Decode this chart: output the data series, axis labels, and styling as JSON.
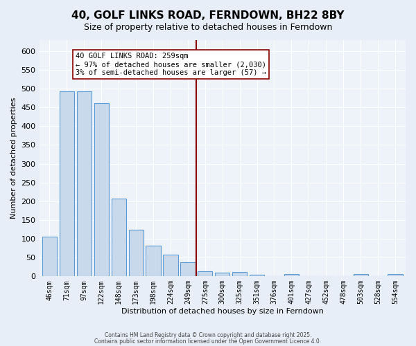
{
  "title": "40, GOLF LINKS ROAD, FERNDOWN, BH22 8BY",
  "subtitle": "Size of property relative to detached houses in Ferndown",
  "xlabel": "Distribution of detached houses by size in Ferndown",
  "ylabel": "Number of detached properties",
  "bins": [
    "46sqm",
    "71sqm",
    "97sqm",
    "122sqm",
    "148sqm",
    "173sqm",
    "198sqm",
    "224sqm",
    "249sqm",
    "275sqm",
    "300sqm",
    "325sqm",
    "351sqm",
    "376sqm",
    "401sqm",
    "427sqm",
    "452sqm",
    "478sqm",
    "503sqm",
    "528sqm",
    "554sqm"
  ],
  "values": [
    106,
    492,
    492,
    462,
    207,
    124,
    81,
    58,
    38,
    14,
    10,
    12,
    4,
    0,
    7,
    0,
    0,
    0,
    7,
    0,
    7
  ],
  "bar_color": "#c9d9ec",
  "bar_edge_color": "#5b9bd5",
  "vline_x": 8.5,
  "vline_color": "#8b0000",
  "annotation_text": "40 GOLF LINKS ROAD: 259sqm\n← 97% of detached houses are smaller (2,030)\n3% of semi-detached houses are larger (57) →",
  "annotation_box_color": "white",
  "annotation_box_edge_color": "#8b0000",
  "background_color": "#e8eef7",
  "plot_background_color": "#eef2f9",
  "grid_color": "#ffffff",
  "ylim": [
    0,
    630
  ],
  "yticks": [
    0,
    50,
    100,
    150,
    200,
    250,
    300,
    350,
    400,
    450,
    500,
    550,
    600
  ],
  "footer1": "Contains HM Land Registry data © Crown copyright and database right 2025.",
  "footer2": "Contains public sector information licensed under the Open Government Licence 4.0."
}
